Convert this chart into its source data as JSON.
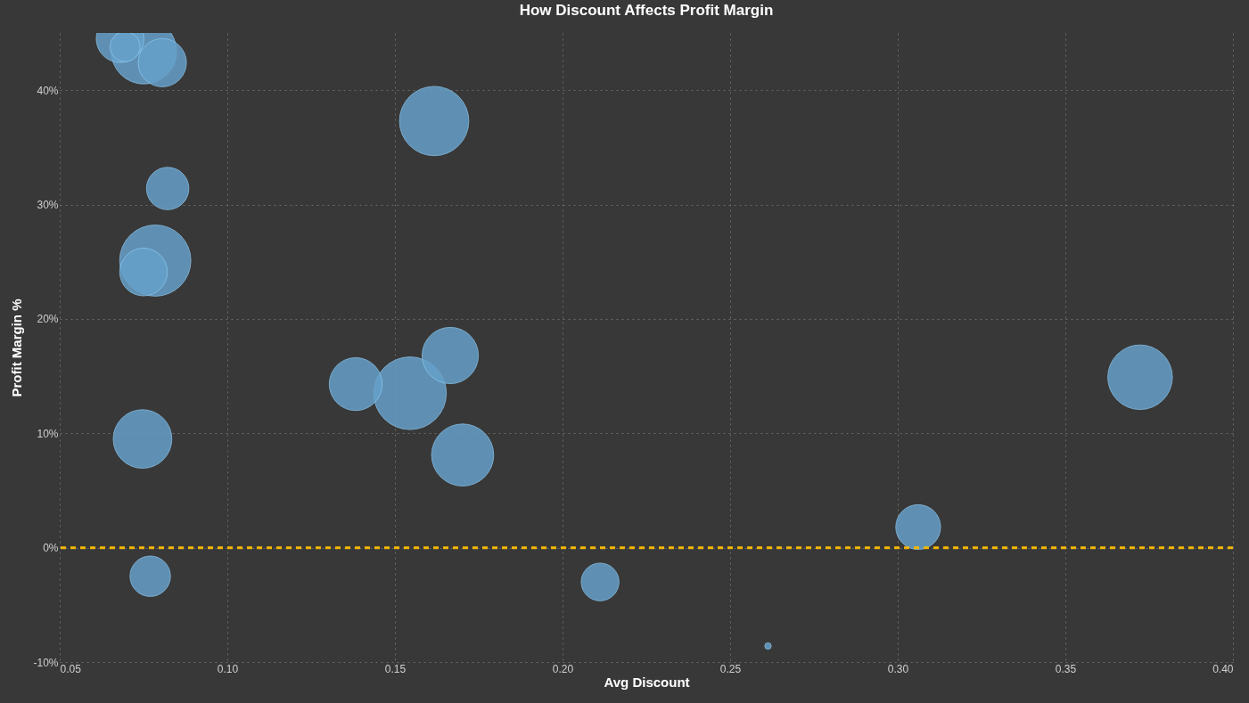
{
  "chart_data": {
    "type": "bubble",
    "title": "How Discount Affects Profit Margin",
    "xlabel": "Avg Discount",
    "ylabel": "Profit Margin %",
    "x": [
      0.068,
      0.0751,
      0.0695,
      0.0806,
      0.0822,
      0.0785,
      0.075,
      0.0747,
      0.077,
      0.1383,
      0.1545,
      0.1665,
      0.1702,
      0.1617,
      0.3723,
      0.2112,
      0.3061,
      0.2613
    ],
    "values": [
      44.5,
      43.4,
      43.8,
      42.4,
      31.4,
      25.1,
      24.1,
      9.5,
      -2.5,
      14.3,
      13.5,
      16.8,
      8.1,
      37.3,
      14.9,
      -3.0,
      1.8,
      -8.6
    ],
    "sizes": [
      0.43,
      0.81,
      0.17,
      0.44,
      0.34,
      0.96,
      0.43,
      0.65,
      0.31,
      0.53,
      1,
      0.6,
      0.73,
      0.91,
      0.79,
      0.27,
      0.38,
      0.008
    ],
    "color": "#66a0c9",
    "xlim": [
      0.05,
      0.4
    ],
    "xticks": [
      0.05,
      {
        "value": 0.1,
        "label": "0.10"
      },
      0.15,
      {
        "value": 0.2,
        "label": "0.20"
      },
      0.25,
      {
        "value": 0.3,
        "label": "0.30"
      },
      0.35,
      {
        "value": 0.4,
        "label": "0.40"
      }
    ],
    "ylim": [
      -10,
      45
    ],
    "yticks": [
      {
        "value": -10,
        "label": "-10%"
      },
      {
        "value": 0,
        "label": "0%"
      },
      {
        "value": 10,
        "label": "10%"
      },
      {
        "value": 20,
        "label": "20%"
      },
      {
        "value": 30,
        "label": "30%"
      },
      {
        "value": 40,
        "label": "40%"
      }
    ],
    "ref_lines": [
      {
        "axis": "y",
        "value": 0,
        "color": "#f5b800",
        "line_style": "dashed"
      }
    ],
    "grid": true
  }
}
